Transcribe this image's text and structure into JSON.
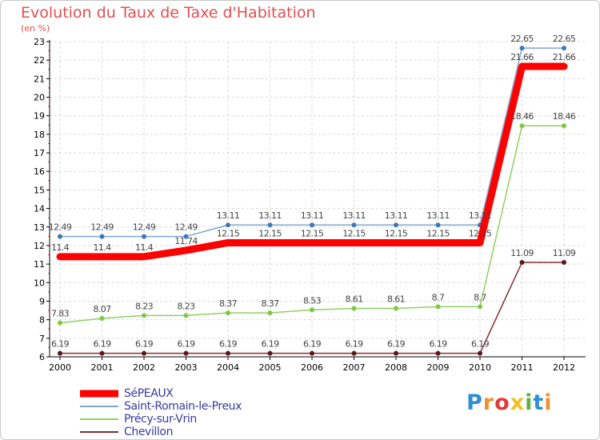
{
  "title": "Evolution du Taux de Taxe d'Habitation",
  "unit": "(en %)",
  "logo": {
    "letters": [
      "P",
      "r",
      "o",
      "x",
      "i",
      "t",
      "i"
    ],
    "colors": [
      "#2f8fd0",
      "#f09030",
      "#e03a3a",
      "#f0c020",
      "#60b040",
      "#2f8fd0",
      "#f09030"
    ]
  },
  "chart_data": {
    "type": "line",
    "title": "Evolution du Taux de Taxe d'Habitation",
    "ylabel": "(en %)",
    "xlabel": "",
    "x": [
      "2000",
      "2001",
      "2002",
      "2003",
      "2004",
      "2005",
      "2006",
      "2007",
      "2008",
      "2009",
      "2010",
      "2011",
      "2012"
    ],
    "ylim": [
      6,
      23
    ],
    "yticks": [
      "6",
      "7",
      "8",
      "9",
      "10",
      "11",
      "12",
      "13",
      "14",
      "15",
      "16",
      "17",
      "18",
      "19",
      "20",
      "21",
      "22",
      "23"
    ],
    "grid": true,
    "legend": "bottom-left",
    "series": [
      {
        "name": "SéPEAUX",
        "color": "#ff0000",
        "values": [
          11.4,
          11.4,
          11.4,
          11.74,
          12.15,
          12.15,
          12.15,
          12.15,
          12.15,
          12.15,
          12.15,
          21.66,
          21.66
        ],
        "labels": [
          "11.4",
          "11.4",
          "11.4",
          "11.74",
          "12.15",
          "12.15",
          "12.15",
          "12.15",
          "12.15",
          "12.15",
          "12.15",
          "21.66",
          "21.66"
        ]
      },
      {
        "name": "Saint-Romain-le-Preux",
        "color": "#7fa8d0",
        "values": [
          12.49,
          12.49,
          12.49,
          12.49,
          13.11,
          13.11,
          13.11,
          13.11,
          13.11,
          13.11,
          13.11,
          22.65,
          22.65
        ],
        "labels": [
          "12.49",
          "12.49",
          "12.49",
          "12.49",
          "13.11",
          "13.11",
          "13.11",
          "13.11",
          "13.11",
          "13.11",
          "13.11",
          "22.65",
          "22.65"
        ]
      },
      {
        "name": "Précy-sur-Vrin",
        "color": "#90d060",
        "values": [
          7.83,
          8.07,
          8.23,
          8.23,
          8.37,
          8.37,
          8.53,
          8.61,
          8.61,
          8.7,
          8.7,
          18.46,
          18.46
        ],
        "labels": [
          "7.83",
          "8.07",
          "8.23",
          "8.23",
          "8.37",
          "8.37",
          "8.53",
          "8.61",
          "8.61",
          "8.7",
          "8.7",
          "18.46",
          "18.46"
        ]
      },
      {
        "name": "Chevillon",
        "color": "#803030",
        "values": [
          6.19,
          6.19,
          6.19,
          6.19,
          6.19,
          6.19,
          6.19,
          6.19,
          6.19,
          6.19,
          6.19,
          11.09,
          11.09
        ],
        "labels": [
          "6.19",
          "6.19",
          "6.19",
          "6.19",
          "6.19",
          "6.19",
          "6.19",
          "6.19",
          "6.19",
          "6.19",
          "6.19",
          "11.09",
          "11.09"
        ]
      }
    ]
  }
}
